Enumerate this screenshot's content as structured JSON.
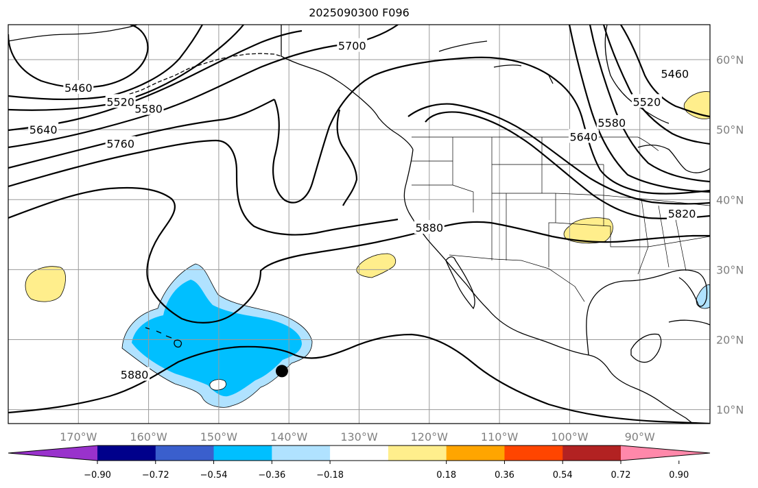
{
  "title": "2025090300 F096",
  "chart_data": {
    "type": "heatmap",
    "title": "2025090300 F096",
    "map_projection": "plate-carree",
    "lon_range": [
      -180,
      -80
    ],
    "lat_range": [
      8,
      65
    ],
    "lon_ticks": [
      -170,
      -160,
      -150,
      -140,
      -130,
      -120,
      -110,
      -100,
      -90
    ],
    "lon_tick_labels": [
      "170°W",
      "160°W",
      "150°W",
      "140°W",
      "130°W",
      "120°W",
      "110°W",
      "100°W",
      "90°W"
    ],
    "lat_ticks": [
      10,
      20,
      30,
      40,
      50,
      60
    ],
    "lat_tick_labels": [
      "10°N",
      "20°N",
      "30°N",
      "40°N",
      "50°N",
      "60°N"
    ],
    "grid": true,
    "contour_levels_labeled": [
      "5460",
      "5520",
      "5580",
      "5640",
      "5700",
      "5760",
      "5820",
      "5880"
    ],
    "contour_labels": [
      {
        "text": "5460",
        "lon": -170,
        "lat": 56
      },
      {
        "text": "5520",
        "lon": -164,
        "lat": 54
      },
      {
        "text": "5580",
        "lon": -160,
        "lat": 53
      },
      {
        "text": "5640",
        "lon": -175,
        "lat": 50
      },
      {
        "text": "5760",
        "lon": -164,
        "lat": 48
      },
      {
        "text": "5700",
        "lon": -131,
        "lat": 62
      },
      {
        "text": "5460",
        "lon": -85,
        "lat": 58
      },
      {
        "text": "5520",
        "lon": -89,
        "lat": 54
      },
      {
        "text": "5580",
        "lon": -94,
        "lat": 51
      },
      {
        "text": "5640",
        "lon": -98,
        "lat": 49
      },
      {
        "text": "5820",
        "lon": -84,
        "lat": 38
      },
      {
        "text": "5880",
        "lon": -120,
        "lat": 36
      },
      {
        "text": "5880",
        "lon": -162,
        "lat": 15
      }
    ],
    "marker": {
      "lon": -141,
      "lat": 15.5
    },
    "colorbar": {
      "placement": "bottom",
      "extend": "both",
      "ticks": [
        "−0.90",
        "−0.72",
        "−0.54",
        "−0.36",
        "−0.18",
        "0.18",
        "0.36",
        "0.54",
        "0.72",
        "0.90"
      ],
      "boundaries": [
        -0.9,
        -0.72,
        -0.54,
        -0.36,
        -0.18,
        0.18,
        0.36,
        0.54,
        0.72,
        0.9
      ],
      "colors": [
        "#9932cc",
        "#00008b",
        "#3a5fcd",
        "#00bfff",
        "#b0e2ff",
        "#ffffff",
        "#ffee8c",
        "#ffa500",
        "#ff4500",
        "#b22222",
        "#ff88aa"
      ]
    }
  }
}
